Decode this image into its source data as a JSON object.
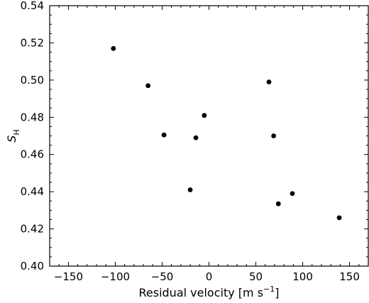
{
  "chart_data": {
    "type": "scatter",
    "title": "",
    "xlabel": "Residual velocity [m s",
    "xlabel_sup": "−1",
    "xlabel_close": "]",
    "ylabel": "S",
    "ylabel_sub": "H",
    "xlim": [
      -170,
      170
    ],
    "ylim": [
      0.4,
      0.54
    ],
    "xticks": [
      -150,
      -100,
      -50,
      0,
      50,
      100,
      150
    ],
    "xtick_labels": [
      "−150",
      "−100",
      "−50",
      "0",
      "50",
      "100",
      "150"
    ],
    "yticks": [
      0.4,
      0.42,
      0.44,
      0.46,
      0.48,
      0.5,
      0.52,
      0.54
    ],
    "ytick_labels": [
      "0.40",
      "0.42",
      "0.44",
      "0.46",
      "0.48",
      "0.50",
      "0.52",
      "0.54"
    ],
    "grid": false,
    "marker_color": "#000000",
    "points": [
      {
        "x": -102,
        "y": 0.517
      },
      {
        "x": -65,
        "y": 0.497
      },
      {
        "x": -48,
        "y": 0.4705
      },
      {
        "x": -20,
        "y": 0.441
      },
      {
        "x": -14,
        "y": 0.469
      },
      {
        "x": -5,
        "y": 0.481
      },
      {
        "x": 64,
        "y": 0.499
      },
      {
        "x": 69,
        "y": 0.47
      },
      {
        "x": 74,
        "y": 0.4335
      },
      {
        "x": 89,
        "y": 0.439
      },
      {
        "x": 139,
        "y": 0.426
      }
    ]
  }
}
